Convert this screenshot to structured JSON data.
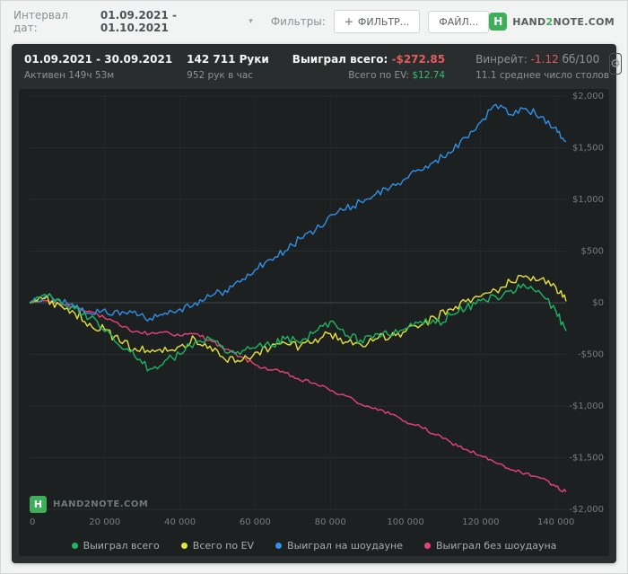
{
  "topbar": {
    "interval_label": "Интервал дат:",
    "interval_value": "01.09.2021 - 01.10.2021",
    "filters_label": "Фильтры:",
    "filter_button": "ФИЛЬТР...",
    "file_button": "ФАЙЛ...",
    "brand_h": "H",
    "brand_pre": "HAND",
    "brand_num": "2",
    "brand_post": "NOTE.COM"
  },
  "stats": {
    "date_range": "01.09.2021 - 30.09.2021",
    "active": "Активен 149ч 53м",
    "hands": "142 711 Руки",
    "pace": "952 рук в час",
    "won_label": "Выиграл всего:",
    "won_value": "-$272.85",
    "ev_label": "Всего по EV:",
    "ev_value": "$12.74",
    "winrate_label": "Винрейт:",
    "winrate_value": "-1.12",
    "winrate_unit": "бб/100",
    "avg_tables": "11.1 среднее число столов"
  },
  "watermark": {
    "h": "H",
    "text": "HAND2NOTE.COM"
  },
  "icons": {
    "gear": "⚙",
    "plus": "+",
    "caret": "▾"
  },
  "colors": {
    "negative": "#e25c5c",
    "positive": "#2fbf71",
    "accent_green": "#3fae5a",
    "panel_bg": "#2a2d2e",
    "chart_bg": "#1d2021"
  },
  "chart_data": {
    "type": "line",
    "title": "",
    "xlabel": "",
    "ylabel": "",
    "grid": true,
    "legend_position": "bottom",
    "xlim": [
      0,
      142711
    ],
    "ylim": [
      -2000,
      2000
    ],
    "x_ticks": [
      0,
      20000,
      40000,
      60000,
      80000,
      100000,
      120000,
      140000
    ],
    "x_tick_labels": [
      "0",
      "20 000",
      "40 000",
      "60 000",
      "80 000",
      "100 000",
      "120 000",
      "140 000"
    ],
    "y_ticks": [
      2000,
      1500,
      1000,
      500,
      0,
      -500,
      -1000,
      -1500,
      -2000
    ],
    "y_tick_labels": [
      "$2,000",
      "$1,500",
      "$1,000",
      "$500",
      "$0",
      "-$500",
      "-$1,000",
      "-$1,500",
      "-$2,000"
    ],
    "x": [
      0,
      4000,
      8000,
      12000,
      16000,
      20000,
      24000,
      28000,
      32000,
      36000,
      40000,
      44000,
      48000,
      52000,
      56000,
      60000,
      64000,
      68000,
      72000,
      76000,
      80000,
      84000,
      88000,
      92000,
      96000,
      100000,
      104000,
      108000,
      112000,
      116000,
      120000,
      124000,
      128000,
      132000,
      136000,
      140000,
      142711
    ],
    "series": [
      {
        "name": "Выиграл всего",
        "color": "#1db563",
        "noise": 45,
        "values": [
          0,
          80,
          30,
          -60,
          -150,
          -280,
          -420,
          -520,
          -640,
          -560,
          -500,
          -380,
          -350,
          -480,
          -500,
          -440,
          -420,
          -350,
          -390,
          -280,
          -180,
          -320,
          -360,
          -300,
          -320,
          -250,
          -180,
          -200,
          -120,
          -60,
          20,
          60,
          120,
          150,
          90,
          -80,
          -272.85
        ]
      },
      {
        "name": "Всего по EV",
        "color": "#e6e33a",
        "noise": 45,
        "values": [
          0,
          40,
          -20,
          -100,
          -200,
          -260,
          -380,
          -440,
          -480,
          -430,
          -420,
          -350,
          -420,
          -550,
          -570,
          -480,
          -440,
          -390,
          -420,
          -350,
          -300,
          -380,
          -400,
          -350,
          -330,
          -280,
          -220,
          -150,
          -60,
          10,
          60,
          120,
          200,
          260,
          230,
          150,
          12.74
        ]
      },
      {
        "name": "Выиграл на шоудауне",
        "color": "#3190e8",
        "noise": 40,
        "values": [
          0,
          60,
          20,
          -40,
          -100,
          -60,
          -120,
          -80,
          -150,
          -100,
          -60,
          0,
          60,
          120,
          200,
          320,
          420,
          500,
          620,
          700,
          850,
          900,
          980,
          1050,
          1120,
          1200,
          1280,
          1380,
          1450,
          1600,
          1750,
          1920,
          1820,
          1880,
          1800,
          1700,
          1560
        ]
      },
      {
        "name": "Выиграл без шоудауна",
        "color": "#e84378",
        "noise": 18,
        "values": [
          0,
          20,
          -10,
          -40,
          -80,
          -150,
          -220,
          -280,
          -300,
          -280,
          -320,
          -300,
          -360,
          -450,
          -520,
          -600,
          -650,
          -680,
          -750,
          -780,
          -850,
          -900,
          -980,
          -1020,
          -1080,
          -1150,
          -1200,
          -1280,
          -1350,
          -1420,
          -1480,
          -1550,
          -1620,
          -1650,
          -1700,
          -1780,
          -1830
        ]
      }
    ]
  }
}
